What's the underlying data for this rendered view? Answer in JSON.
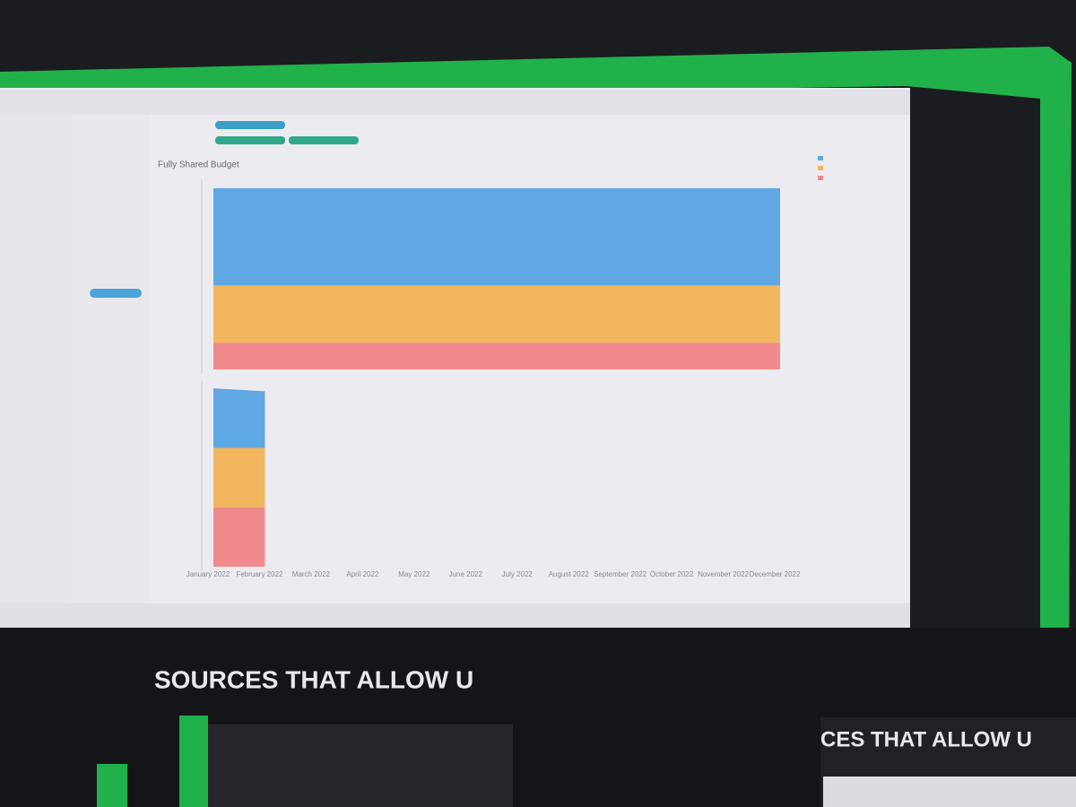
{
  "chart_data": [
    {
      "type": "area",
      "title": "Fully Shared Budget",
      "categories": [
        "January 2022",
        "February 2022",
        "March 2022",
        "April 2022",
        "May 2022",
        "June 2022",
        "July 2022",
        "August 2022",
        "September 2022",
        "October 2022",
        "November 2022",
        "December 2022"
      ],
      "ylim": [
        0,
        4200
      ],
      "series": [
        {
          "color": "#5fa8e3",
          "values": [
            2200,
            2200,
            2200,
            2200,
            2200,
            2200,
            2200,
            2200,
            2200,
            2200,
            2200,
            2200
          ]
        },
        {
          "color": "#f2b65e",
          "values": [
            1300,
            1300,
            1300,
            1300,
            1300,
            1300,
            1300,
            1300,
            1300,
            1300,
            1300,
            1300
          ]
        },
        {
          "color": "#f08a8c",
          "values": [
            600,
            600,
            600,
            600,
            600,
            600,
            600,
            600,
            600,
            600,
            600,
            600
          ]
        }
      ]
    },
    {
      "type": "area",
      "ylim": [
        0,
        3200
      ],
      "series": [
        {
          "color": "#5fa8e3",
          "values": [
            1050,
            1000,
            null,
            null,
            null,
            null,
            null,
            null,
            null,
            null,
            null,
            null
          ]
        },
        {
          "color": "#f2b65e",
          "values": [
            1050,
            1050,
            null,
            null,
            null,
            null,
            null,
            null,
            null,
            null,
            null,
            null
          ]
        },
        {
          "color": "#f08a8c",
          "values": [
            1050,
            1050,
            null,
            null,
            null,
            null,
            null,
            null,
            null,
            null,
            null,
            null
          ]
        }
      ]
    }
  ],
  "slide": {
    "caption": "SOURCES THAT ALLOW U",
    "caption_right": "CES THAT ALLOW U"
  }
}
